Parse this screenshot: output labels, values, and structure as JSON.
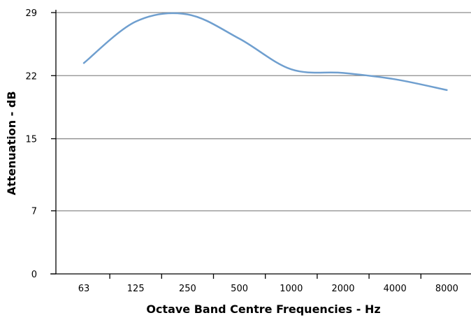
{
  "chart_data": {
    "type": "line",
    "categories": [
      "63",
      "125",
      "250",
      "500",
      "1000",
      "2000",
      "4000",
      "8000"
    ],
    "series": [
      {
        "values": [
          23.4,
          28.0,
          28.8,
          26.1,
          22.7,
          22.3,
          21.6,
          20.4
        ]
      }
    ],
    "yticks": [
      "0",
      "7",
      "15",
      "22",
      "29"
    ],
    "ylim": [
      0,
      29
    ],
    "xlabel": "Octave Band Centre Frequencies - Hz",
    "ylabel": "Attenuation - dB",
    "grid": true,
    "legend": "none",
    "colors": {
      "line": "#6f9fcf",
      "grid": "#8c8c8c",
      "axis": "#000000"
    }
  }
}
